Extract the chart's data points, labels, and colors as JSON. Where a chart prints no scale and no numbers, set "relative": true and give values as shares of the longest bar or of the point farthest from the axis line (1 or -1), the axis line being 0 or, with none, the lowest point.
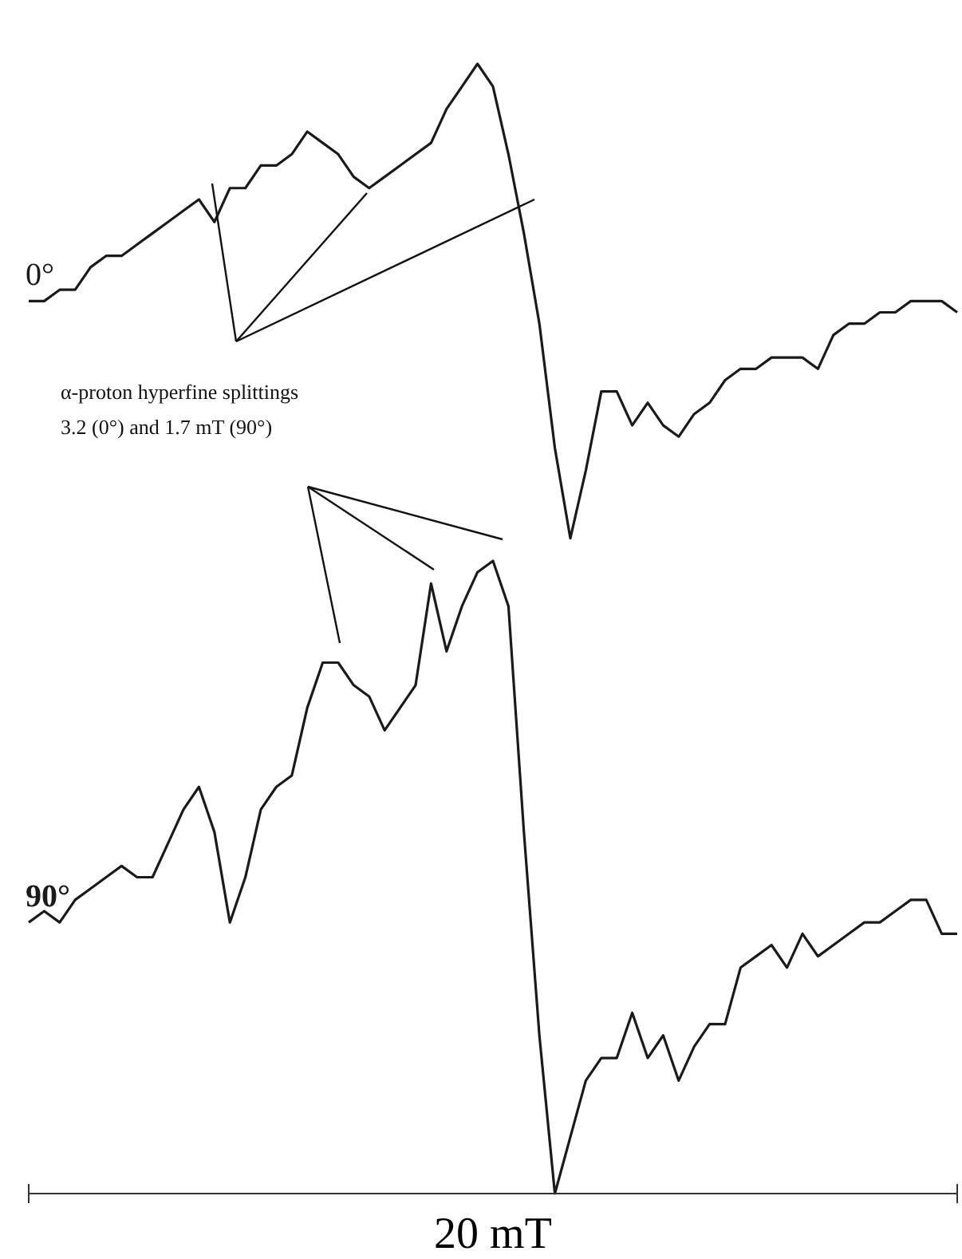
{
  "chart_data": {
    "type": "line",
    "relative": true,
    "xlabel": "20 mT",
    "categories": [
      null,
      null,
      null,
      null,
      null,
      null,
      null,
      null,
      null,
      null,
      null,
      null,
      null,
      null,
      null,
      null,
      null,
      null,
      null,
      null,
      null,
      null,
      null,
      null,
      null,
      null,
      null,
      null,
      null,
      null,
      null,
      null,
      null,
      null,
      null,
      null,
      null,
      null,
      null,
      null,
      null,
      null,
      null,
      null,
      null,
      null,
      null,
      null,
      null,
      null,
      null,
      null,
      null,
      null,
      null,
      null,
      null,
      null,
      null,
      null,
      null
    ],
    "series": [
      {
        "name": "0°",
        "color": "#1a1a1a",
        "values": [
          0.79,
          0.79,
          0.8,
          0.8,
          0.82,
          0.83,
          0.83,
          0.84,
          0.85,
          0.86,
          0.87,
          0.88,
          0.86,
          0.89,
          0.89,
          0.91,
          0.91,
          0.92,
          0.94,
          0.93,
          0.92,
          0.9,
          0.89,
          0.9,
          0.91,
          0.92,
          0.93,
          0.96,
          0.98,
          1,
          0.98,
          0.92,
          0.85,
          0.77,
          0.66,
          0.58,
          0.64,
          0.71,
          0.71,
          0.68,
          0.7,
          0.68,
          0.67,
          0.69,
          0.7,
          0.72,
          0.73,
          0.73,
          0.74,
          0.74,
          0.74,
          0.73,
          0.76,
          0.77,
          0.77,
          0.78,
          0.78,
          0.79,
          0.79,
          0.79,
          0.78
        ]
      },
      {
        "name": "90°",
        "color": "#1a1a1a",
        "values": [
          0.24,
          0.25,
          0.24,
          0.26,
          0.27,
          0.28,
          0.29,
          0.28,
          0.28,
          0.31,
          0.34,
          0.36,
          0.32,
          0.24,
          0.28,
          0.34,
          0.36,
          0.37,
          0.43,
          0.47,
          0.47,
          0.45,
          0.44,
          0.41,
          0.43,
          0.45,
          0.54,
          0.48,
          0.52,
          0.55,
          0.56,
          0.52,
          0.32,
          0.14,
          0,
          0.05,
          0.1,
          0.12,
          0.12,
          0.16,
          0.12,
          0.14,
          0.1,
          0.13,
          0.15,
          0.15,
          0.2,
          0.21,
          0.22,
          0.2,
          0.23,
          0.21,
          0.22,
          0.23,
          0.24,
          0.24,
          0.25,
          0.26,
          0.26,
          0.23,
          0.23
        ]
      }
    ],
    "annotations": [
      "α-proton hyperfine splittings",
      "3.2 (0°) and 1.7 mT (90°)"
    ],
    "marker": "none",
    "line_style": "solid"
  }
}
